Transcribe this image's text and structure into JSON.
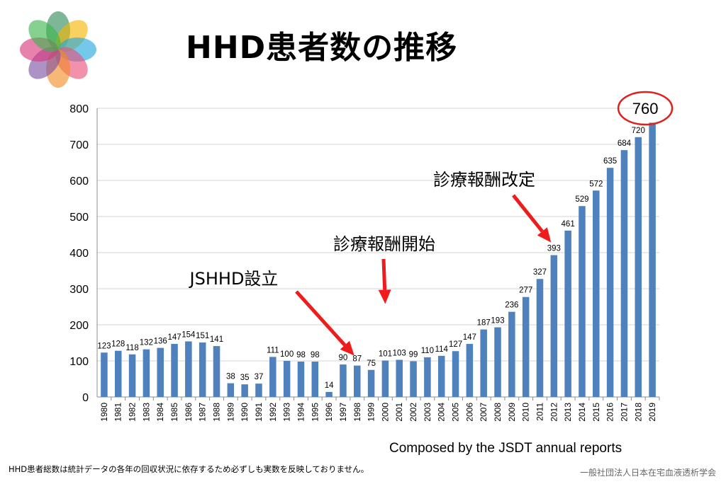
{
  "slide": {
    "title": "HHD患者数の推移",
    "source": "Composed by the JSDT annual reports",
    "footnote": "HHD患者総数は統計データの各年の回収状況に依存するため必ずしも実数を反映しておりません。",
    "organization": "一般社団法人日本在宅血液透析学会",
    "logo": {
      "icon": "flower-petals-logo-icon",
      "petal_colors": [
        "#2e8b57",
        "#f4b400",
        "#1ea7e1",
        "#e94e77",
        "#f08a24",
        "#7a4fa3",
        "#d9357a",
        "#3bb54a"
      ]
    }
  },
  "chart_data": {
    "type": "bar",
    "title": "",
    "xlabel": "",
    "ylabel": "",
    "ylim": [
      0,
      800
    ],
    "yticks": [
      0,
      100,
      200,
      300,
      400,
      500,
      600,
      700,
      800
    ],
    "grid": true,
    "legend": "none",
    "bar_color": "#4f81bd",
    "categories": [
      "1980",
      "1981",
      "1982",
      "1983",
      "1984",
      "1985",
      "1986",
      "1987",
      "1988",
      "1989",
      "1990",
      "1991",
      "1992",
      "1993",
      "1994",
      "1995",
      "1996",
      "1997",
      "1998",
      "1999",
      "2000",
      "2001",
      "2002",
      "2003",
      "2004",
      "2005",
      "2006",
      "2007",
      "2008",
      "2009",
      "2010",
      "2011",
      "2012",
      "2013",
      "2014",
      "2015",
      "2016",
      "2017",
      "2018",
      "2019"
    ],
    "values": [
      123,
      128,
      118,
      132,
      136,
      147,
      154,
      151,
      141,
      38,
      35,
      37,
      111,
      100,
      98,
      98,
      14,
      90,
      87,
      75,
      101,
      103,
      99,
      110,
      114,
      127,
      147,
      187,
      193,
      236,
      277,
      327,
      393,
      461,
      529,
      572,
      635,
      684,
      720,
      760
    ],
    "highlight": {
      "category": "2019",
      "label": "760",
      "circle_color": "#e0201c"
    },
    "annotations": [
      {
        "text": "JSHHD設立",
        "target": "1998",
        "arrow_color": "#ee1c1c"
      },
      {
        "text": "診療報酬開始",
        "target": "2000",
        "arrow_color": "#ee1c1c"
      },
      {
        "text": "診療報酬改定",
        "target": "2012",
        "arrow_color": "#ee1c1c"
      }
    ]
  }
}
